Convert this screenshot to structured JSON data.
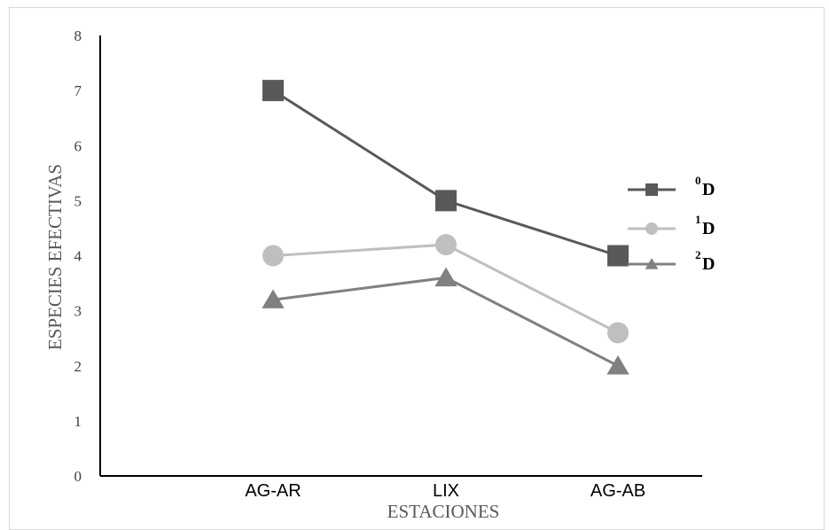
{
  "chart_data": {
    "type": "line",
    "categories": [
      "AG-AR",
      "LIX",
      "AG-AB"
    ],
    "series": [
      {
        "name": "D",
        "superscript": "0",
        "values": [
          7,
          5,
          4
        ],
        "color": "#595959",
        "marker": "square"
      },
      {
        "name": "D",
        "superscript": "1",
        "values": [
          4.0,
          4.2,
          2.6
        ],
        "color": "#bfbfbf",
        "marker": "circle"
      },
      {
        "name": "D",
        "superscript": "2",
        "values": [
          3.2,
          3.6,
          2.0
        ],
        "color": "#808080",
        "marker": "triangle"
      }
    ],
    "xlabel": "ESTACIONES",
    "ylabel": "ESPECIES EFECTIVAS",
    "ylim": [
      0,
      8
    ],
    "yticks": [
      "0",
      "1",
      "2",
      "3",
      "4",
      "5",
      "6",
      "7",
      "8"
    ],
    "grid": false,
    "legend": "right"
  }
}
